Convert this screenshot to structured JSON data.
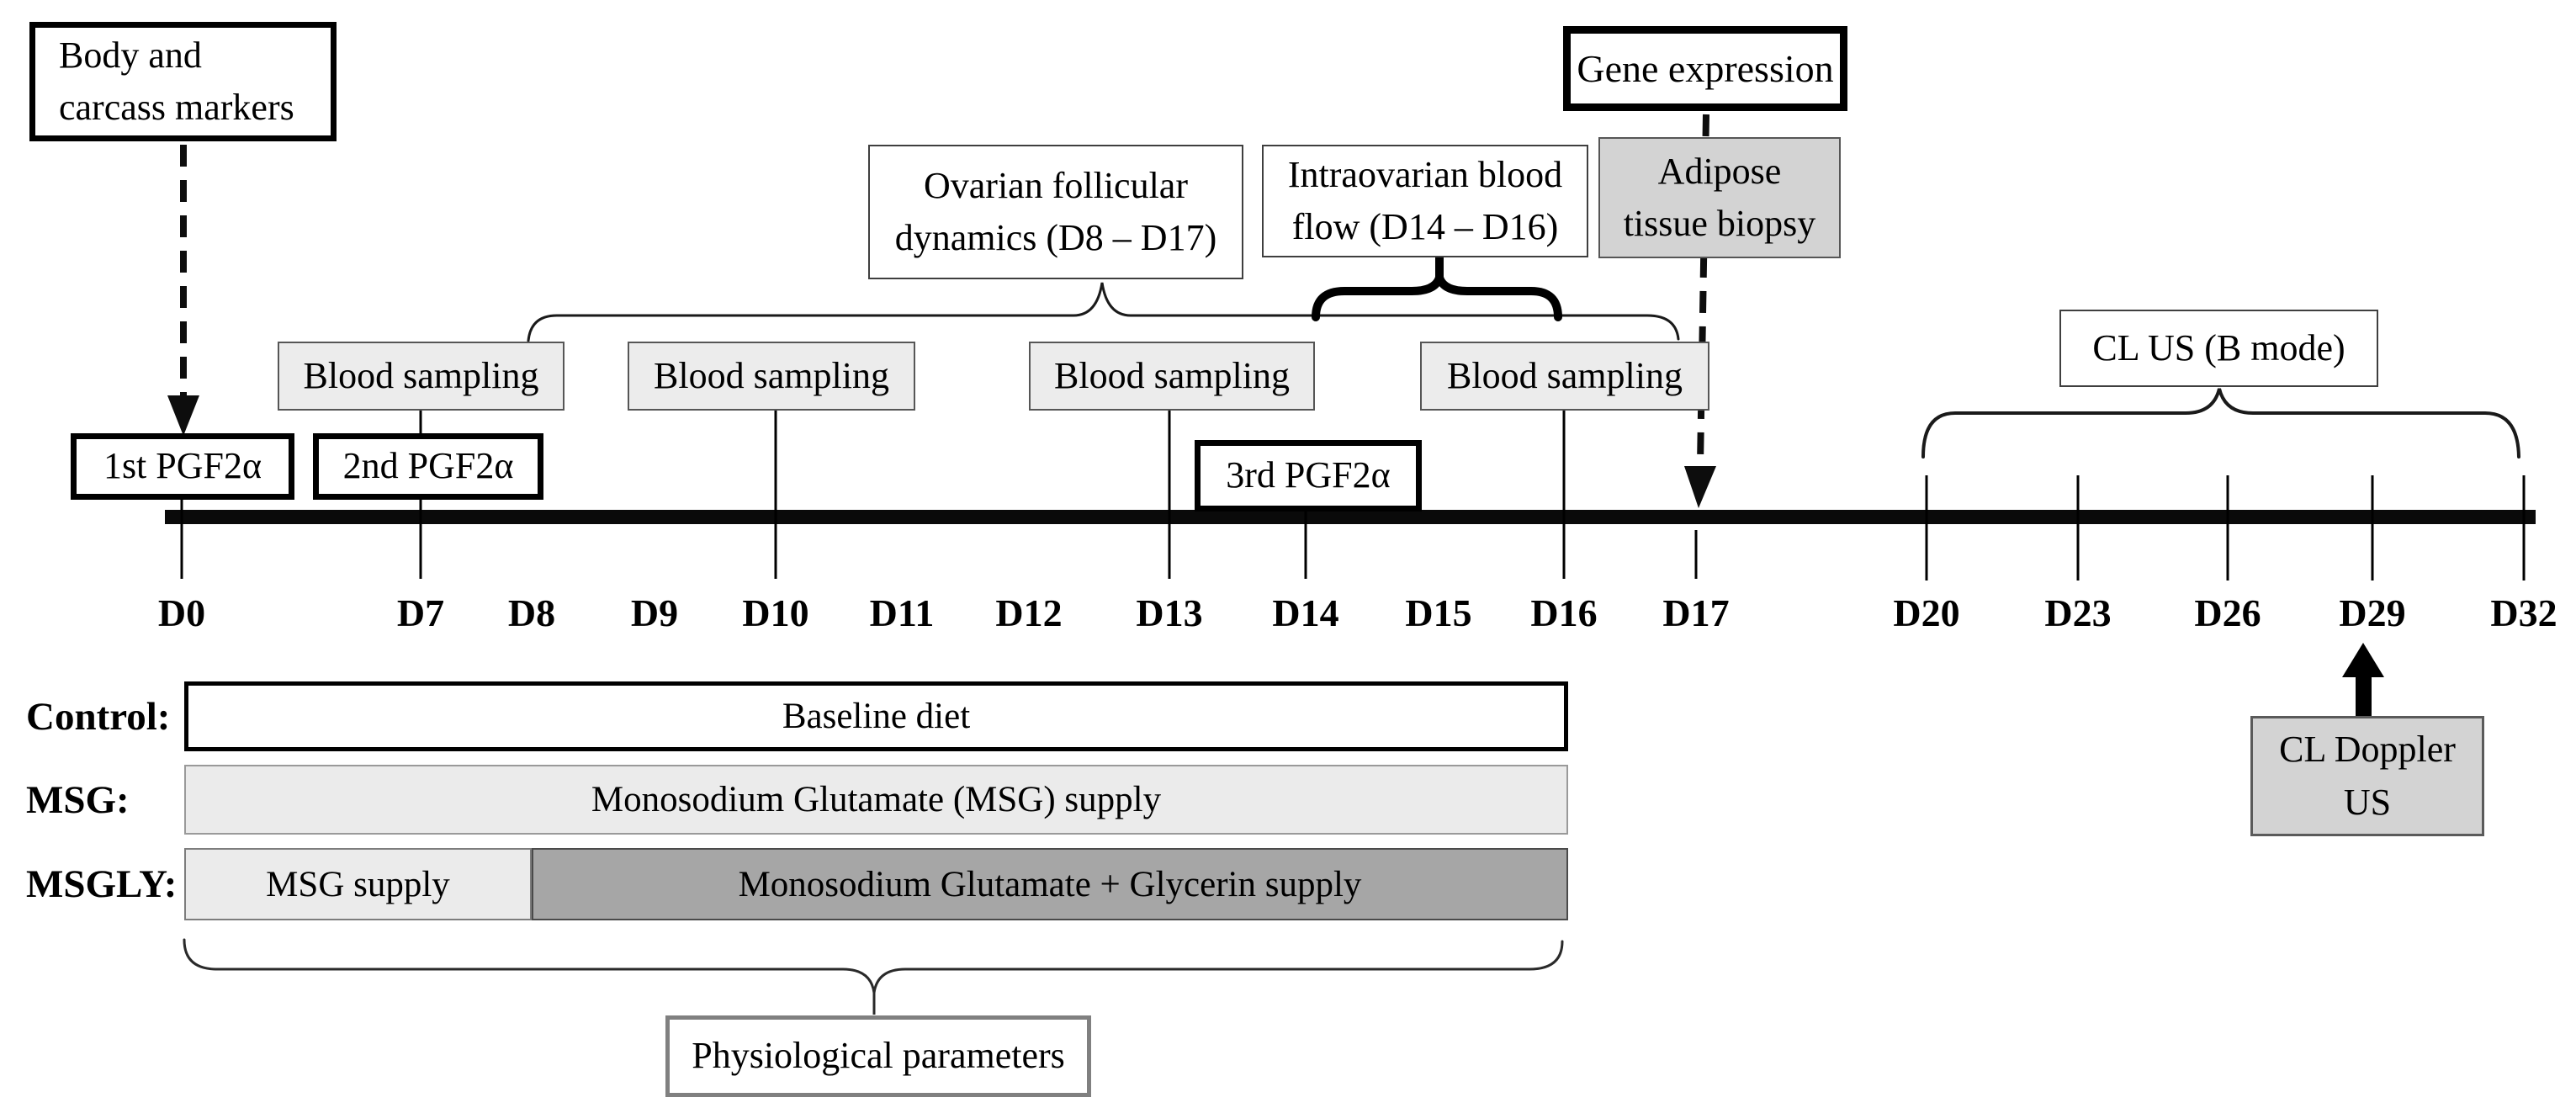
{
  "boxes": {
    "body_carcass": {
      "lines": [
        "Body and",
        "carcass markers"
      ]
    },
    "gene_expression": {
      "label": "Gene expression"
    },
    "ovarian_dynamics": {
      "lines": [
        "Ovarian follicular",
        "dynamics (D8 – D17)"
      ]
    },
    "intraovarian_flow": {
      "lines": [
        "Intraovarian blood",
        "flow (D14 – D16)"
      ]
    },
    "adipose_biopsy": {
      "lines": [
        "Adipose",
        "tissue biopsy"
      ]
    },
    "blood_sampling": [
      "Blood sampling",
      "Blood sampling",
      "Blood sampling",
      "Blood sampling"
    ],
    "pgf_1": {
      "label": "1st PGF2α"
    },
    "pgf_2": {
      "label": "2nd PGF2α"
    },
    "pgf_3": {
      "label": "3rd PGF2α"
    },
    "cl_us_b_mode": {
      "label": "CL US (B mode)"
    },
    "cl_doppler_us": {
      "lines": [
        "CL Doppler",
        "US"
      ]
    },
    "physiological_parameters": {
      "label": "Physiological parameters"
    }
  },
  "timeline": {
    "days": [
      "D0",
      "D7",
      "D8",
      "D9",
      "D10",
      "D11",
      "D12",
      "D13",
      "D14",
      "D15",
      "D16",
      "D17",
      "D20",
      "D23",
      "D26",
      "D29",
      "D32"
    ]
  },
  "diet": {
    "rows": [
      {
        "label": "Control:",
        "segments": [
          {
            "text": "Baseline diet"
          }
        ]
      },
      {
        "label": "MSG:",
        "segments": [
          {
            "text": "Monosodium Glutamate (MSG) supply"
          }
        ]
      },
      {
        "label": "MSGLY:",
        "segments": [
          {
            "text": "MSG supply"
          },
          {
            "text": "Monosodium Glutamate + Glycerin supply"
          }
        ]
      }
    ]
  },
  "colors": {
    "ink": "#000000",
    "light_box_fill": "#ececec",
    "mid_gray_fill": "#d3d3d3",
    "bar_light_fill": "#ebebeb",
    "bar_dark_fill": "#a6a6a6"
  }
}
